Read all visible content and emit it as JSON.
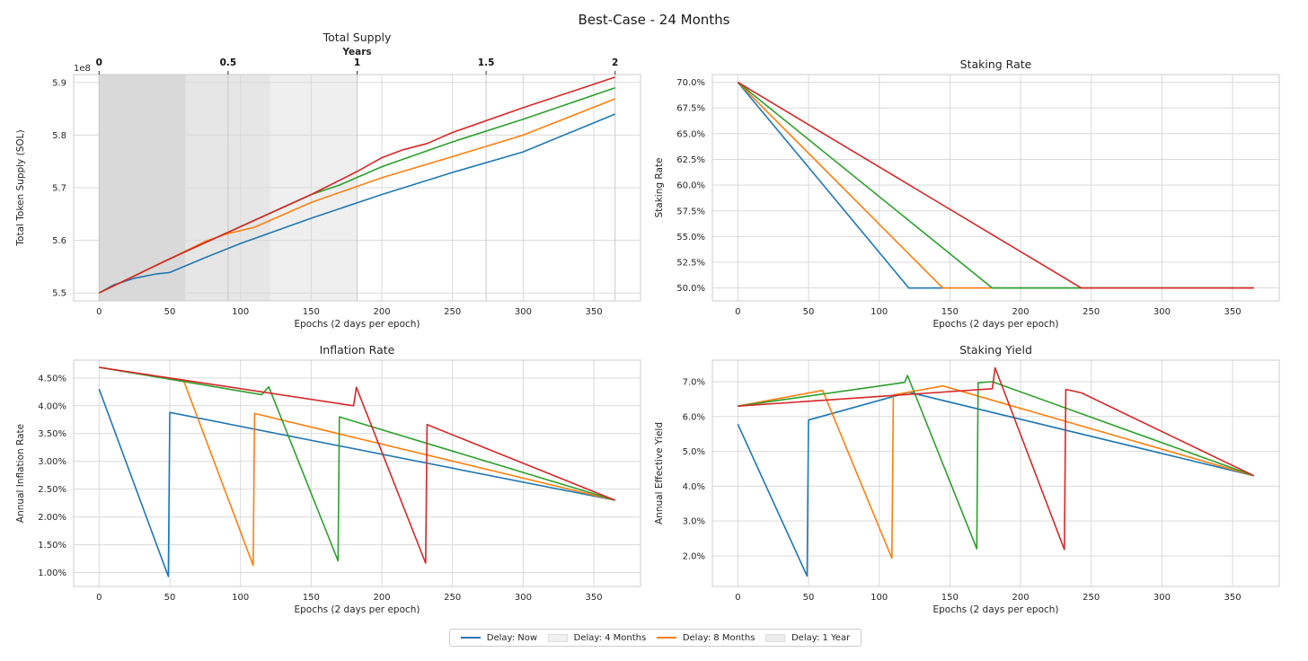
{
  "figure": {
    "title": "Best-Case - 24 Months"
  },
  "legend": [
    {
      "label": "Delay: Now",
      "kind": "line",
      "color": "#1f77b4"
    },
    {
      "label": "Delay: 4 Months",
      "kind": "patch",
      "color": "#f0f0f0"
    },
    {
      "label": "Delay: 8 Months",
      "kind": "line",
      "color": "#ff7f0e"
    },
    {
      "label": "Delay: 1 Year",
      "kind": "patch",
      "color": "#ececec"
    }
  ],
  "chart_data": [
    {
      "id": "total-supply",
      "type": "line",
      "title": "Total Supply",
      "xlabel": "Epochs (2 days per epoch)",
      "ylabel": "Total Token Supply (SOL)",
      "xlim": [
        -18,
        383
      ],
      "ylim": [
        5.485,
        5.915
      ],
      "xticks": [
        0,
        50,
        100,
        150,
        200,
        250,
        300,
        350
      ],
      "xtick_labels": [
        "0",
        "50",
        "100",
        "150",
        "200",
        "250",
        "300",
        "350"
      ],
      "yticks": [
        5.5,
        5.6,
        5.7,
        5.8,
        5.9
      ],
      "ytick_labels": [
        "5.5",
        "5.6",
        "5.7",
        "5.8",
        "5.9"
      ],
      "offset_text": "1e8",
      "top_axis": {
        "label": "Years",
        "ticks": [
          0,
          91.25,
          182.5,
          273.75,
          365
        ],
        "tick_labels": [
          "0",
          "0.5",
          "1",
          "1.5",
          "2"
        ]
      },
      "shaded_regions": [
        {
          "x": [
            0,
            182.5
          ],
          "color": "#efefef"
        },
        {
          "x": [
            0,
            121
          ],
          "color": "#e6e6e6"
        },
        {
          "x": [
            0,
            61
          ],
          "color": "#d9d9d9"
        }
      ],
      "grid": true,
      "series": [
        {
          "name": "Delay: Now",
          "color": "#1f77b4",
          "points": [
            [
              0,
              5.5
            ],
            [
              10,
              5.515
            ],
            [
              25,
              5.528
            ],
            [
              40,
              5.536
            ],
            [
              50,
              5.539
            ],
            [
              75,
              5.567
            ],
            [
              100,
              5.594
            ],
            [
              150,
              5.642
            ],
            [
              200,
              5.687
            ],
            [
              250,
              5.729
            ],
            [
              300,
              5.768
            ],
            [
              365,
              5.84
            ]
          ]
        },
        {
          "name": "Delay: 4 Months",
          "color": "#2ca02c",
          "points": [
            [
              0,
              5.5
            ],
            [
              50,
              5.565
            ],
            [
              100,
              5.626
            ],
            [
              150,
              5.687
            ],
            [
              170,
              5.705
            ],
            [
              200,
              5.74
            ],
            [
              250,
              5.787
            ],
            [
              300,
              5.83
            ],
            [
              365,
              5.89
            ]
          ]
        },
        {
          "name": "Delay: 8 Months",
          "color": "#ff7f0e",
          "points": [
            [
              0,
              5.5
            ],
            [
              50,
              5.565
            ],
            [
              60,
              5.578
            ],
            [
              75,
              5.598
            ],
            [
              90,
              5.612
            ],
            [
              110,
              5.625
            ],
            [
              150,
              5.672
            ],
            [
              200,
              5.719
            ],
            [
              250,
              5.759
            ],
            [
              300,
              5.8
            ],
            [
              365,
              5.869
            ]
          ]
        },
        {
          "name": "Delay: 1 Year",
          "color": "#d62728",
          "points": [
            [
              0,
              5.5
            ],
            [
              50,
              5.565
            ],
            [
              100,
              5.626
            ],
            [
              150,
              5.687
            ],
            [
              182,
              5.73
            ],
            [
              200,
              5.757
            ],
            [
              215,
              5.772
            ],
            [
              232,
              5.784
            ],
            [
              250,
              5.805
            ],
            [
              300,
              5.852
            ],
            [
              365,
              5.91
            ]
          ]
        }
      ]
    },
    {
      "id": "staking-rate",
      "type": "line",
      "title": "Staking Rate",
      "xlabel": "Epochs (2 days per epoch)",
      "ylabel": "Staking Rate",
      "xlim": [
        -18,
        383
      ],
      "ylim": [
        0.4875,
        0.7075
      ],
      "xticks": [
        0,
        50,
        100,
        150,
        200,
        250,
        300,
        350
      ],
      "xtick_labels": [
        "0",
        "50",
        "100",
        "150",
        "200",
        "250",
        "300",
        "350"
      ],
      "yticks": [
        0.5,
        0.525,
        0.55,
        0.575,
        0.6,
        0.625,
        0.65,
        0.675,
        0.7
      ],
      "ytick_labels": [
        "50.0%",
        "52.5%",
        "55.0%",
        "57.5%",
        "60.0%",
        "62.5%",
        "65.0%",
        "67.5%",
        "70.0%"
      ],
      "grid": true,
      "series": [
        {
          "name": "Delay: Now",
          "color": "#1f77b4",
          "points": [
            [
              0,
              0.7
            ],
            [
              121,
              0.5
            ],
            [
              365,
              0.5
            ]
          ]
        },
        {
          "name": "Delay: 8 Months",
          "color": "#ff7f0e",
          "points": [
            [
              0,
              0.7
            ],
            [
              145,
              0.5
            ],
            [
              365,
              0.5
            ]
          ]
        },
        {
          "name": "Delay: 4 Months",
          "color": "#2ca02c",
          "points": [
            [
              0,
              0.7
            ],
            [
              180,
              0.5
            ],
            [
              365,
              0.5
            ]
          ]
        },
        {
          "name": "Delay: 1 Year",
          "color": "#d62728",
          "points": [
            [
              0,
              0.7
            ],
            [
              243,
              0.5
            ],
            [
              365,
              0.5
            ]
          ]
        }
      ]
    },
    {
      "id": "inflation-rate",
      "type": "line",
      "title": "Inflation Rate",
      "xlabel": "Epochs (2 days per epoch)",
      "ylabel": "Annual Inflation Rate",
      "xlim": [
        -18,
        383
      ],
      "ylim": [
        0.0075,
        0.0482
      ],
      "xticks": [
        0,
        50,
        100,
        150,
        200,
        250,
        300,
        350
      ],
      "xtick_labels": [
        "0",
        "50",
        "100",
        "150",
        "200",
        "250",
        "300",
        "350"
      ],
      "yticks": [
        0.01,
        0.015,
        0.02,
        0.025,
        0.03,
        0.035,
        0.04,
        0.045
      ],
      "ytick_labels": [
        "1.00%",
        "1.50%",
        "2.00%",
        "2.50%",
        "3.00%",
        "3.50%",
        "4.00%",
        "4.50%"
      ],
      "grid": true,
      "series": [
        {
          "name": "Delay: Now",
          "color": "#1f77b4",
          "points": [
            [
              0,
              0.043
            ],
            [
              49,
              0.0093
            ],
            [
              50,
              0.0388
            ],
            [
              365,
              0.023
            ]
          ]
        },
        {
          "name": "Delay: 8 Months",
          "color": "#ff7f0e",
          "points": [
            [
              0,
              0.0469
            ],
            [
              60,
              0.0444
            ],
            [
              109,
              0.0113
            ],
            [
              110,
              0.0386
            ],
            [
              365,
              0.023
            ]
          ]
        },
        {
          "name": "Delay: 4 Months",
          "color": "#2ca02c",
          "points": [
            [
              0,
              0.0469
            ],
            [
              115,
              0.042
            ],
            [
              120,
              0.0434
            ],
            [
              169,
              0.0121
            ],
            [
              170,
              0.038
            ],
            [
              365,
              0.023
            ]
          ]
        },
        {
          "name": "Delay: 1 Year",
          "color": "#d62728",
          "points": [
            [
              0,
              0.0469
            ],
            [
              180,
              0.04
            ],
            [
              182,
              0.0433
            ],
            [
              231,
              0.0117
            ],
            [
              232,
              0.0366
            ],
            [
              365,
              0.023
            ]
          ]
        }
      ]
    },
    {
      "id": "staking-yield",
      "type": "line",
      "title": "Staking Yield",
      "xlabel": "Epochs (2 days per epoch)",
      "ylabel": "Annual Effective Yield",
      "xlim": [
        -18,
        383
      ],
      "ylim": [
        0.0112,
        0.0762
      ],
      "xticks": [
        0,
        50,
        100,
        150,
        200,
        250,
        300,
        350
      ],
      "xtick_labels": [
        "0",
        "50",
        "100",
        "150",
        "200",
        "250",
        "300",
        "350"
      ],
      "yticks": [
        0.02,
        0.03,
        0.04,
        0.05,
        0.06,
        0.07
      ],
      "ytick_labels": [
        "2.0%",
        "3.0%",
        "4.0%",
        "5.0%",
        "6.0%",
        "7.0%"
      ],
      "grid": true,
      "series": [
        {
          "name": "Delay: Now",
          "color": "#1f77b4",
          "points": [
            [
              0,
              0.0578
            ],
            [
              49,
              0.0142
            ],
            [
              50,
              0.059
            ],
            [
              121,
              0.067
            ],
            [
              365,
              0.043
            ]
          ]
        },
        {
          "name": "Delay: 8 Months",
          "color": "#ff7f0e",
          "points": [
            [
              0,
              0.063
            ],
            [
              60,
              0.0675
            ],
            [
              109,
              0.0193
            ],
            [
              110,
              0.0662
            ],
            [
              145,
              0.0688
            ],
            [
              365,
              0.043
            ]
          ]
        },
        {
          "name": "Delay: 4 Months",
          "color": "#2ca02c",
          "points": [
            [
              0,
              0.063
            ],
            [
              118,
              0.0698
            ],
            [
              120,
              0.0718
            ],
            [
              169,
              0.022
            ],
            [
              170,
              0.0697
            ],
            [
              180,
              0.07
            ],
            [
              365,
              0.043
            ]
          ]
        },
        {
          "name": "Delay: 1 Year",
          "color": "#d62728",
          "points": [
            [
              0,
              0.063
            ],
            [
              180,
              0.068
            ],
            [
              182,
              0.074
            ],
            [
              231,
              0.0218
            ],
            [
              232,
              0.0678
            ],
            [
              243,
              0.0668
            ],
            [
              365,
              0.043
            ]
          ]
        }
      ]
    }
  ]
}
